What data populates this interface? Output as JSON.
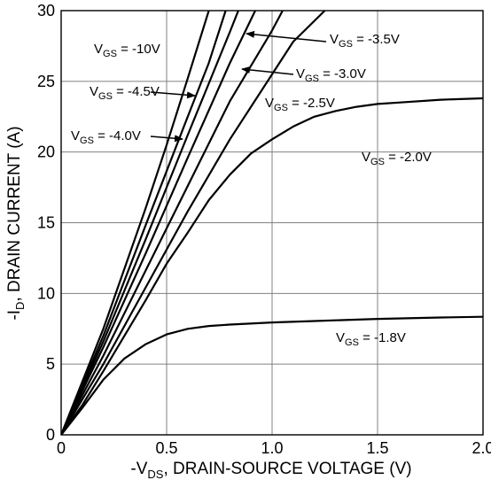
{
  "chart_data": {
    "type": "line",
    "xlabel": {
      "prefix": "-V",
      "sub": "DS",
      "suffix": ", DRAIN-SOURCE VOLTAGE (V)"
    },
    "ylabel": {
      "prefix": "-I",
      "sub": "D",
      "suffix": ", DRAIN CURRENT (A)"
    },
    "xlim": [
      0,
      2.0
    ],
    "ylim": [
      0,
      30
    ],
    "x_ticks": [
      0,
      0.5,
      1.0,
      1.5,
      2.0
    ],
    "x_tick_labels": [
      "0",
      "0.5",
      "1.0",
      "1.5",
      "2.0"
    ],
    "y_ticks": [
      0,
      5,
      10,
      15,
      20,
      25,
      30
    ],
    "y_tick_labels": [
      "0",
      "5",
      "10",
      "15",
      "20",
      "25",
      "30"
    ],
    "grid": true,
    "line_color": "#000000",
    "grid_color": "#808080",
    "series": [
      {
        "name": "V_GS = -10V",
        "points": [
          [
            0,
            0
          ],
          [
            0.2,
            7.5
          ],
          [
            0.4,
            16.0
          ],
          [
            0.5,
            20.5
          ],
          [
            0.6,
            25.2
          ],
          [
            0.7,
            30
          ]
        ]
      },
      {
        "name": "V_GS = -4.5V",
        "points": [
          [
            0,
            0
          ],
          [
            0.2,
            7.0
          ],
          [
            0.4,
            14.8
          ],
          [
            0.6,
            22.5
          ],
          [
            0.7,
            26.3
          ],
          [
            0.78,
            30
          ]
        ]
      },
      {
        "name": "V_GS = -4.0V",
        "points": [
          [
            0,
            0
          ],
          [
            0.2,
            6.6
          ],
          [
            0.4,
            13.8
          ],
          [
            0.6,
            21.2
          ],
          [
            0.8,
            28.5
          ],
          [
            0.84,
            30
          ]
        ]
      },
      {
        "name": "V_GS = -3.5V",
        "points": [
          [
            0,
            0
          ],
          [
            0.2,
            6.2
          ],
          [
            0.4,
            12.8
          ],
          [
            0.6,
            19.6
          ],
          [
            0.8,
            26.3
          ],
          [
            0.92,
            30
          ]
        ]
      },
      {
        "name": "V_GS = -3.0V",
        "points": [
          [
            0,
            0
          ],
          [
            0.2,
            5.6
          ],
          [
            0.4,
            11.6
          ],
          [
            0.6,
            17.6
          ],
          [
            0.8,
            23.6
          ],
          [
            1.0,
            28.6
          ],
          [
            1.05,
            30
          ]
        ]
      },
      {
        "name": "V_GS = -2.5V",
        "points": [
          [
            0,
            0
          ],
          [
            0.2,
            5.0
          ],
          [
            0.4,
            10.4
          ],
          [
            0.6,
            15.8
          ],
          [
            0.8,
            20.9
          ],
          [
            1.0,
            25.5
          ],
          [
            1.1,
            27.8
          ],
          [
            1.25,
            30
          ]
        ]
      },
      {
        "name": "V_GS = -2.0V",
        "points": [
          [
            0,
            0
          ],
          [
            0.1,
            2.1
          ],
          [
            0.2,
            4.5
          ],
          [
            0.3,
            7.0
          ],
          [
            0.4,
            9.5
          ],
          [
            0.5,
            12.1
          ],
          [
            0.6,
            14.3
          ],
          [
            0.7,
            16.6
          ],
          [
            0.8,
            18.4
          ],
          [
            0.9,
            19.9
          ],
          [
            1.0,
            20.9
          ],
          [
            1.1,
            21.8
          ],
          [
            1.2,
            22.5
          ],
          [
            1.3,
            22.9
          ],
          [
            1.4,
            23.2
          ],
          [
            1.5,
            23.4
          ],
          [
            1.6,
            23.5
          ],
          [
            1.8,
            23.7
          ],
          [
            2.0,
            23.8
          ]
        ]
      },
      {
        "name": "V_GS = -1.8V",
        "points": [
          [
            0,
            0
          ],
          [
            0.1,
            1.9
          ],
          [
            0.2,
            3.9
          ],
          [
            0.3,
            5.4
          ],
          [
            0.4,
            6.4
          ],
          [
            0.5,
            7.1
          ],
          [
            0.6,
            7.5
          ],
          [
            0.7,
            7.7
          ],
          [
            0.8,
            7.8
          ],
          [
            1.0,
            7.95
          ],
          [
            1.2,
            8.05
          ],
          [
            1.5,
            8.2
          ],
          [
            1.8,
            8.3
          ],
          [
            2.0,
            8.35
          ]
        ]
      }
    ],
    "annotations": [
      {
        "id": "ann-10v",
        "pre": "V",
        "sub": "GS",
        "post": " = -10V"
      },
      {
        "id": "ann-45v",
        "pre": "V",
        "sub": "GS",
        "post": " = -4.5V"
      },
      {
        "id": "ann-40v",
        "pre": "V",
        "sub": "GS",
        "post": " = -4.0V"
      },
      {
        "id": "ann-35v",
        "pre": "V",
        "sub": "GS",
        "post": " = -3.5V"
      },
      {
        "id": "ann-30v",
        "pre": "V",
        "sub": "GS",
        "post": " = -3.0V"
      },
      {
        "id": "ann-25v",
        "pre": "V",
        "sub": "GS",
        "post": " = -2.5V"
      },
      {
        "id": "ann-20v",
        "pre": "V",
        "sub": "GS",
        "post": " = -2.0V"
      },
      {
        "id": "ann-18v",
        "pre": "V",
        "sub": "GS",
        "post": " = -1.8V"
      }
    ]
  }
}
